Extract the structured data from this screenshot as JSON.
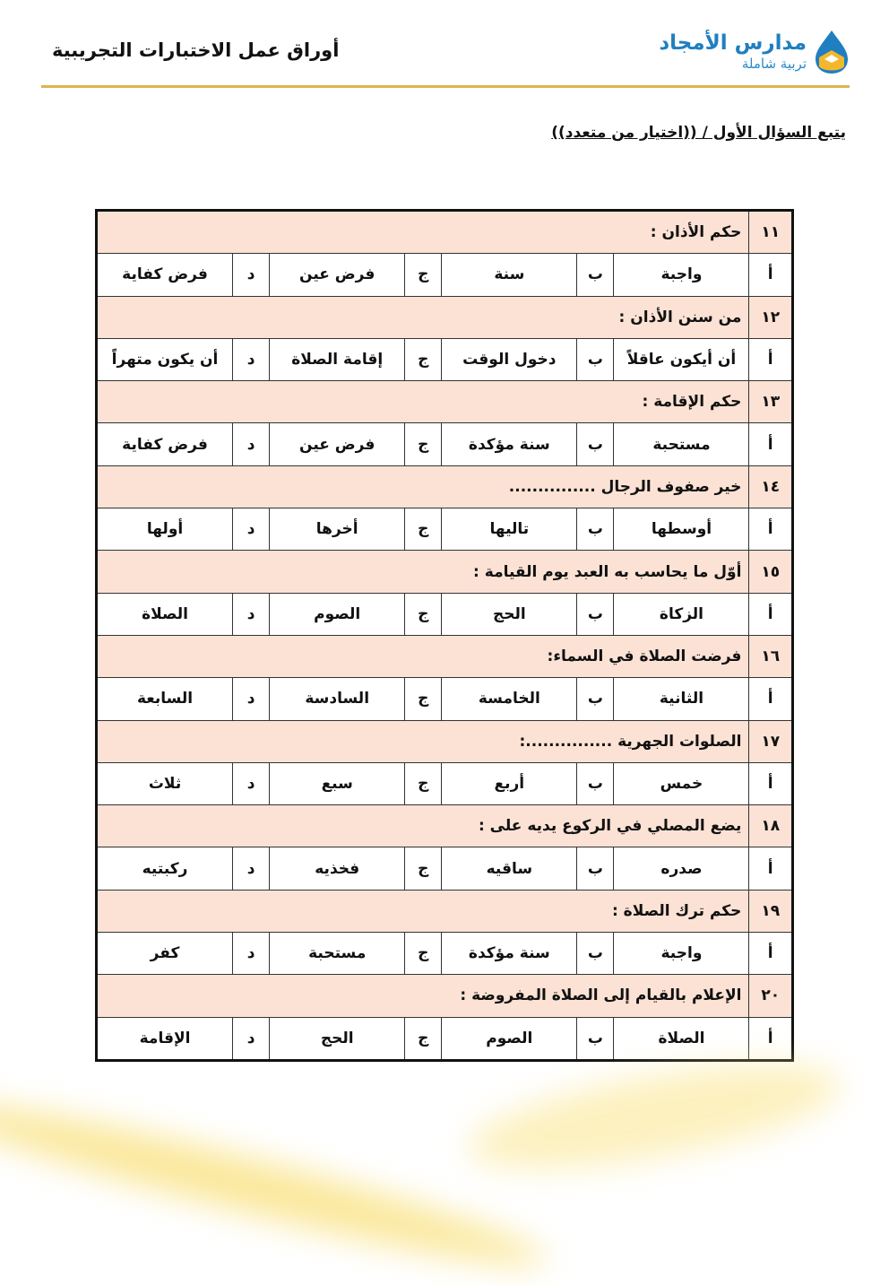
{
  "header": {
    "title": "أوراق عمل الاختبارات التجريبية",
    "logo_name": "مدارس الأمجاد",
    "logo_tagline": "تربية شاملة"
  },
  "section_title": "يتبع السؤال الأول / ((اختيار من متعدد))",
  "option_letters": [
    "أ",
    "ب",
    "ج",
    "د"
  ],
  "questions": [
    {
      "num": "١١",
      "text": "حكم الأذان :",
      "options": [
        "واجبة",
        "سنة",
        "فرض عين",
        "فرض كفاية"
      ]
    },
    {
      "num": "١٢",
      "text": "من سنن الأذان :",
      "options": [
        "أن أيكون عاقلاً",
        "دخول الوقت",
        "إقامة الصلاة",
        "أن يكون متهراً"
      ]
    },
    {
      "num": "١٣",
      "text": "حكم الإقامة :",
      "options": [
        "مستحبة",
        "سنة مؤكدة",
        "فرض عين",
        "فرض كفاية"
      ]
    },
    {
      "num": "١٤",
      "text": "خير صفوف الرجال ...............",
      "options": [
        "أوسطها",
        "تاليها",
        "أخرها",
        "أولها"
      ]
    },
    {
      "num": "١٥",
      "text": "أوّل ما يحاسب به العبد يوم القيامة :",
      "options": [
        "الزكاة",
        "الحج",
        "الصوم",
        "الصلاة"
      ]
    },
    {
      "num": "١٦",
      "text": "فرضت الصلاة في السماء:",
      "options": [
        "الثانية",
        "الخامسة",
        "السادسة",
        "السابعة"
      ]
    },
    {
      "num": "١٧",
      "text": "الصلوات الجهرية ...............:",
      "options": [
        "خمس",
        "أربع",
        "سبع",
        "ثلاث"
      ]
    },
    {
      "num": "١٨",
      "text": "يضع المصلي في الركوع يديه على :",
      "options": [
        "صدره",
        "ساقيه",
        "فخذيه",
        "ركبتيه"
      ]
    },
    {
      "num": "١٩",
      "text": "حكم ترك الصلاة :",
      "options": [
        "واجبة",
        "سنة مؤكدة",
        "مستحبة",
        "كفر"
      ]
    },
    {
      "num": "٢٠",
      "text": "الإعلام بالقيام إلى الصلاة المفروضة :",
      "options": [
        "الصلاة",
        "الصوم",
        "الحج",
        "الإقامة"
      ]
    }
  ],
  "colors": {
    "question_row": "#fbe2d4",
    "rule": "#d9b64f",
    "logo_blue": "#1f7fc0",
    "logo_yellow": "#f4b72c"
  }
}
